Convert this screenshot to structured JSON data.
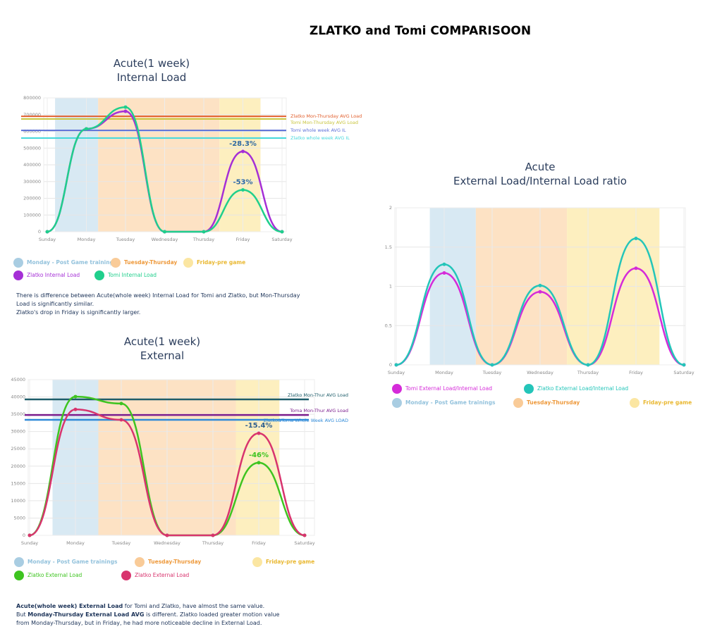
{
  "title": "ZLATKO and Tomi COMPARISOON",
  "chart_data": [
    {
      "type": "line",
      "title": "Acute(1 week)\nInternal Load",
      "categories": [
        "Sunday",
        "Monday",
        "Tuesday",
        "Wednesday",
        "Thursday",
        "Friday",
        "Saturday"
      ],
      "ylim": [
        0,
        800000
      ],
      "yticks": [
        0,
        100000,
        200000,
        300000,
        400000,
        500000,
        600000,
        700000,
        800000
      ],
      "grid": true,
      "series": [
        {
          "name": "Zlatko Internal Load",
          "color": "#a52fd6",
          "values": [
            0,
            615000,
            720000,
            0,
            0,
            480000,
            0
          ]
        },
        {
          "name": "Tomi Internal Load",
          "color": "#20cf8c",
          "values": [
            0,
            615000,
            745000,
            0,
            0,
            250000,
            0
          ]
        }
      ],
      "reference_lines": [
        {
          "name": "Zlatko Mon-Thursday AVG Load",
          "value": 690000,
          "color": "#e2602f"
        },
        {
          "name": "Tomi Mon-Thursday AVG Load",
          "value": 674000,
          "color": "#c8c43c"
        },
        {
          "name": "Tomi whole week AVG IL",
          "value": 606000,
          "color": "#5c6fd8"
        },
        {
          "name": "Zlatko whole week AVG IL",
          "value": 560000,
          "color": "#45d8dc"
        }
      ],
      "bands": [
        {
          "name": "Monday - Post Game trainings",
          "color": "#d8e9f3",
          "legend_color": "#a9cde2",
          "text_color": "#93c2dc",
          "categories": [
            "Monday"
          ]
        },
        {
          "name": "Tuesday-Thursday",
          "color": "#fde2c4",
          "legend_color": "#f9cb98",
          "text_color": "#ee9a3d",
          "categories": [
            "Tuesday",
            "Wednesday",
            "Thursday"
          ]
        },
        {
          "name": "Friday-pre game",
          "color": "#fdefbf",
          "legend_color": "#fbe6a2",
          "text_color": "#e9b832",
          "categories": [
            "Friday"
          ]
        }
      ],
      "annotations": [
        {
          "text": "-28.3%",
          "x": "Friday",
          "series": "Zlatko Internal Load",
          "color": "#2f6aa3"
        },
        {
          "text": "-53%",
          "x": "Friday",
          "series": "Tomi Internal Load",
          "color": "#2f6aa3"
        }
      ],
      "note": [
        [
          {
            "text": "There is difference between Acute(whole week) Internal Load for Tomi and Zlatko, but Mon-Thursday Load is significantly similar."
          }
        ],
        [
          {
            "text": "Zlatko's drop in Friday is significantly larger."
          }
        ]
      ]
    },
    {
      "type": "line",
      "title": "Acute(1 week)\nExternal",
      "categories": [
        "Sunday",
        "Monday",
        "Tuesday",
        "Wednesday",
        "Thursday",
        "Friday",
        "Saturday"
      ],
      "ylim": [
        0,
        45000
      ],
      "yticks": [
        0,
        5000,
        10000,
        15000,
        20000,
        25000,
        30000,
        35000,
        40000,
        45000
      ],
      "grid": true,
      "series": [
        {
          "name": "Zlatko External Load",
          "color": "#3ec420",
          "values": [
            0,
            40100,
            38100,
            0,
            0,
            21000,
            0
          ]
        },
        {
          "name": "Zlatko External Load",
          "color": "#d8346e",
          "values": [
            0,
            36400,
            33400,
            0,
            0,
            29500,
            0
          ]
        }
      ],
      "reference_lines": [
        {
          "name": "Zlatko Mon-Thur AVG Load",
          "value": 39300,
          "color": "#1e5d6a"
        },
        {
          "name": "Toma Mon-Thur AVG Load",
          "value": 34800,
          "color": "#7c1e8e"
        },
        {
          "name": "Zlatko&Toma Whole Week AVG LOAD",
          "value": 33400,
          "color": "#2f8ad8"
        }
      ],
      "bands": [
        {
          "name": "Monday - Post Game trainings",
          "color": "#d8e9f3",
          "legend_color": "#a9cde2",
          "text_color": "#93c2dc",
          "categories": [
            "Monday"
          ]
        },
        {
          "name": "Tuesday-Thursday",
          "color": "#fde2c4",
          "legend_color": "#f9cb98",
          "text_color": "#ee9a3d",
          "categories": [
            "Tuesday",
            "Wednesday",
            "Thursday"
          ]
        },
        {
          "name": "Friday-pre game",
          "color": "#fdefbf",
          "legend_color": "#fbe6a2",
          "text_color": "#e9b832",
          "categories": [
            "Friday"
          ]
        }
      ],
      "annotations": [
        {
          "text": "-15.4%",
          "x": "Friday",
          "series": "Zlatko External Load",
          "color": "#2f5f8f",
          "series_index": 1
        },
        {
          "text": "-46%",
          "x": "Friday",
          "series": "Zlatko External Load",
          "color": "#3ec420",
          "series_index": 0
        }
      ],
      "note": [
        [
          {
            "text": "Acute(whole week) External Load",
            "bold": true
          },
          {
            "text": " for Tomi and Zlatko, have almost the same value."
          }
        ],
        [
          {
            "text": "But "
          },
          {
            "text": "Monday-Thursday External Load AVG",
            "bold": true
          },
          {
            "text": " is different. Zlatko loaded greater motion value from Monday-Thursday, but in Friday, he had more noticeable decline in External Load."
          }
        ]
      ]
    },
    {
      "type": "line",
      "title": "Acute\nExternal Load/Internal Load ratio",
      "categories": [
        "Sunday",
        "Monday",
        "Tuesday",
        "Wednesday",
        "Thursday",
        "Friday",
        "Saturday"
      ],
      "ylim": [
        0,
        2
      ],
      "yticks": [
        0,
        0.5,
        1,
        1.5,
        2
      ],
      "grid": true,
      "series": [
        {
          "name": "Tomi External Load/Internal Load",
          "color": "#d52bd9",
          "values": [
            0,
            1.17,
            0,
            0.93,
            0,
            1.23,
            0
          ]
        },
        {
          "name": "Zlatko External Load/Internal Load",
          "color": "#24c5b9",
          "values": [
            0,
            1.28,
            0,
            1.01,
            0,
            1.61,
            0
          ]
        }
      ],
      "bands": [
        {
          "name": "Monday - Post Game trainings",
          "color": "#d8e9f3",
          "legend_color": "#a9cde2",
          "text_color": "#93c2dc",
          "categories": [
            "Monday"
          ]
        },
        {
          "name": "Tuesday-Thursday",
          "color": "#fde2c4",
          "legend_color": "#f9cb98",
          "text_color": "#ee9a3d",
          "categories": [
            "Tuesday",
            "Wednesday",
            "Thursday"
          ]
        },
        {
          "name": "Friday-pre game",
          "color": "#fdefbf",
          "legend_color": "#fbe6a2",
          "text_color": "#e9b832",
          "categories": [
            "Friday"
          ]
        }
      ]
    }
  ]
}
